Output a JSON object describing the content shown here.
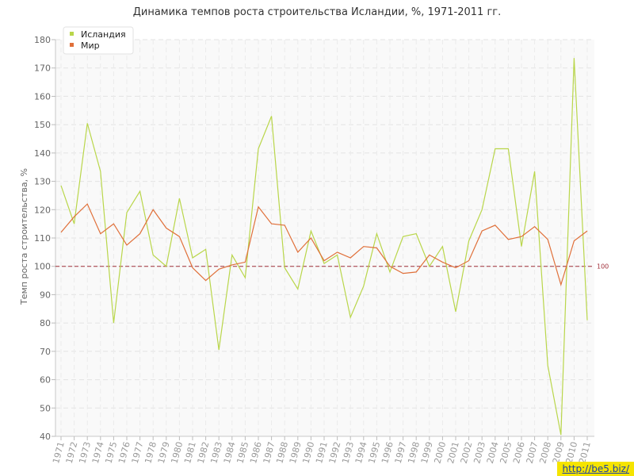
{
  "title": "Динамика темпов роста строительства Исландии, %, 1971-2011 гг.",
  "watermark": "http://be5.biz/",
  "chart_data": {
    "type": "line",
    "ylabel": "Темп роста строительства, %",
    "xlabel": "",
    "ylim": [
      40,
      180
    ],
    "yticks": [
      40,
      50,
      60,
      70,
      80,
      90,
      100,
      110,
      120,
      130,
      140,
      150,
      160,
      170,
      180
    ],
    "grid": true,
    "legend_position": "top-left",
    "reference_line": {
      "value": 100,
      "label": "100",
      "color": "#a0303a"
    },
    "x": [
      "1971",
      "1972",
      "1973",
      "1974",
      "1975",
      "1976",
      "1977",
      "1978",
      "1979",
      "1980",
      "1981",
      "1982",
      "1983",
      "1984",
      "1985",
      "1986",
      "1987",
      "1988",
      "1989",
      "1990",
      "1991",
      "1992",
      "1993",
      "1994",
      "1995",
      "1996",
      "1997",
      "1998",
      "1999",
      "2000",
      "2001",
      "2002",
      "2003",
      "2004",
      "2005",
      "2006",
      "2007",
      "2008",
      "2009",
      "2010",
      "2011"
    ],
    "series": [
      {
        "name": "Исландия",
        "color": "#b9d64a",
        "values": [
          128.5,
          115,
          150.5,
          133.5,
          80,
          119,
          126.5,
          104,
          100,
          124,
          103,
          106,
          70.5,
          104,
          96,
          141.5,
          153,
          99.5,
          92,
          112.5,
          101,
          104,
          82,
          93,
          111.5,
          98,
          110.5,
          111.5,
          100,
          107,
          84,
          109,
          120,
          141.5,
          141.5,
          107,
          133.5,
          65,
          40.5,
          173.5,
          81
        ]
      },
      {
        "name": "Мир",
        "color": "#e0703a",
        "values": [
          112,
          117.5,
          122,
          111.5,
          115,
          107.5,
          111.5,
          120,
          113.5,
          110.5,
          99.5,
          95,
          99,
          100.5,
          101.5,
          121,
          115,
          114.5,
          105,
          110,
          102,
          105,
          103,
          107,
          106.5,
          100,
          97.5,
          98,
          104,
          101.5,
          99.5,
          102,
          112.5,
          114.5,
          109.5,
          110.5,
          114,
          109.5,
          93.5,
          109,
          112.5
        ]
      }
    ]
  }
}
